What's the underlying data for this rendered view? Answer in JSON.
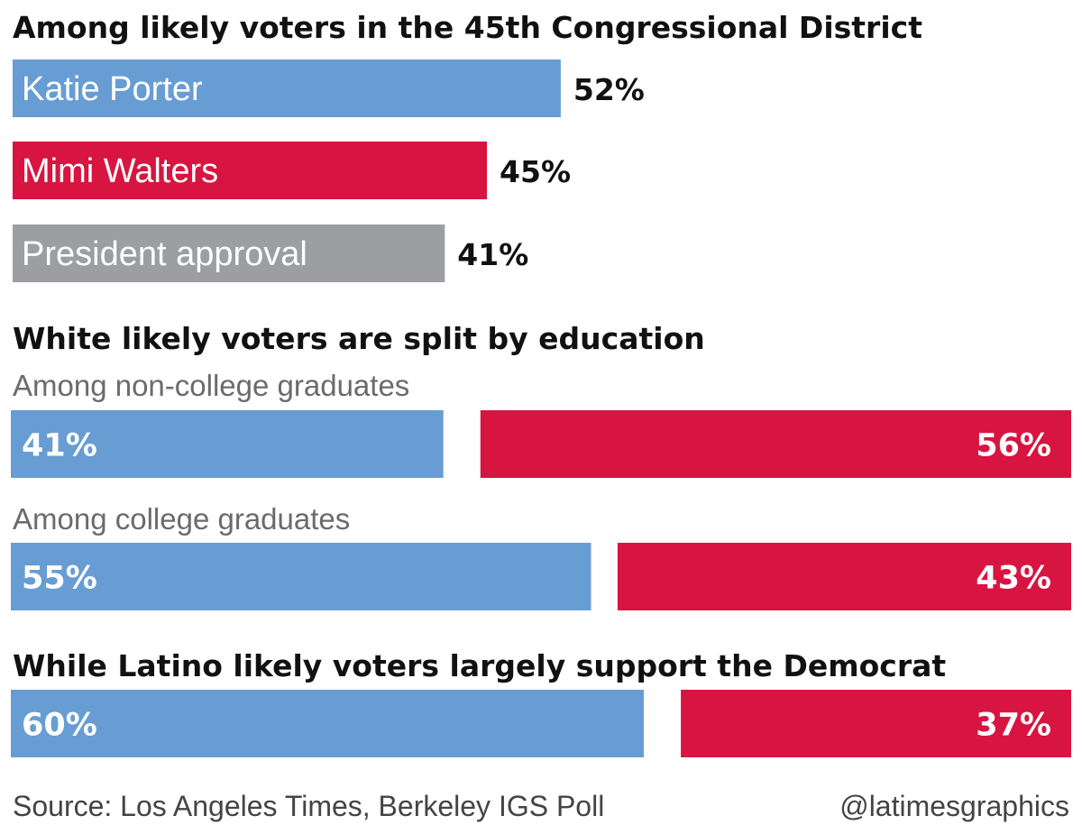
{
  "colors": {
    "democrat": "#679dd3",
    "republican": "#d81440",
    "neutral": "#9c9ea2"
  },
  "chart_data": [
    {
      "type": "bar",
      "title": "Among likely voters in the 45th Congressional District",
      "categories": [
        "Katie Porter",
        "Mimi Walters",
        "President approval"
      ],
      "values": [
        52,
        45,
        41
      ],
      "value_labels": [
        "52%",
        "45%",
        "41%"
      ],
      "colors": [
        "#679dd3",
        "#d81440",
        "#9c9ea2"
      ],
      "ylim": [
        0,
        100
      ]
    },
    {
      "type": "bar",
      "title": "White likely voters are split by education",
      "groups": [
        {
          "label": "Among non-college graduates",
          "democrat": 41,
          "republican": 56,
          "democrat_label": "41%",
          "republican_label": "56%"
        },
        {
          "label": "Among college graduates",
          "democrat": 55,
          "republican": 43,
          "democrat_label": "55%",
          "republican_label": "43%"
        }
      ]
    },
    {
      "type": "bar",
      "title": "While Latino likely voters largely support the Democrat",
      "groups": [
        {
          "label": "",
          "democrat": 60,
          "republican": 37,
          "democrat_label": "60%",
          "republican_label": "37%"
        }
      ]
    }
  ],
  "footer": {
    "source": "Source: Los Angeles Times, Berkeley IGS Poll",
    "credit": "@latimesgraphics"
  }
}
